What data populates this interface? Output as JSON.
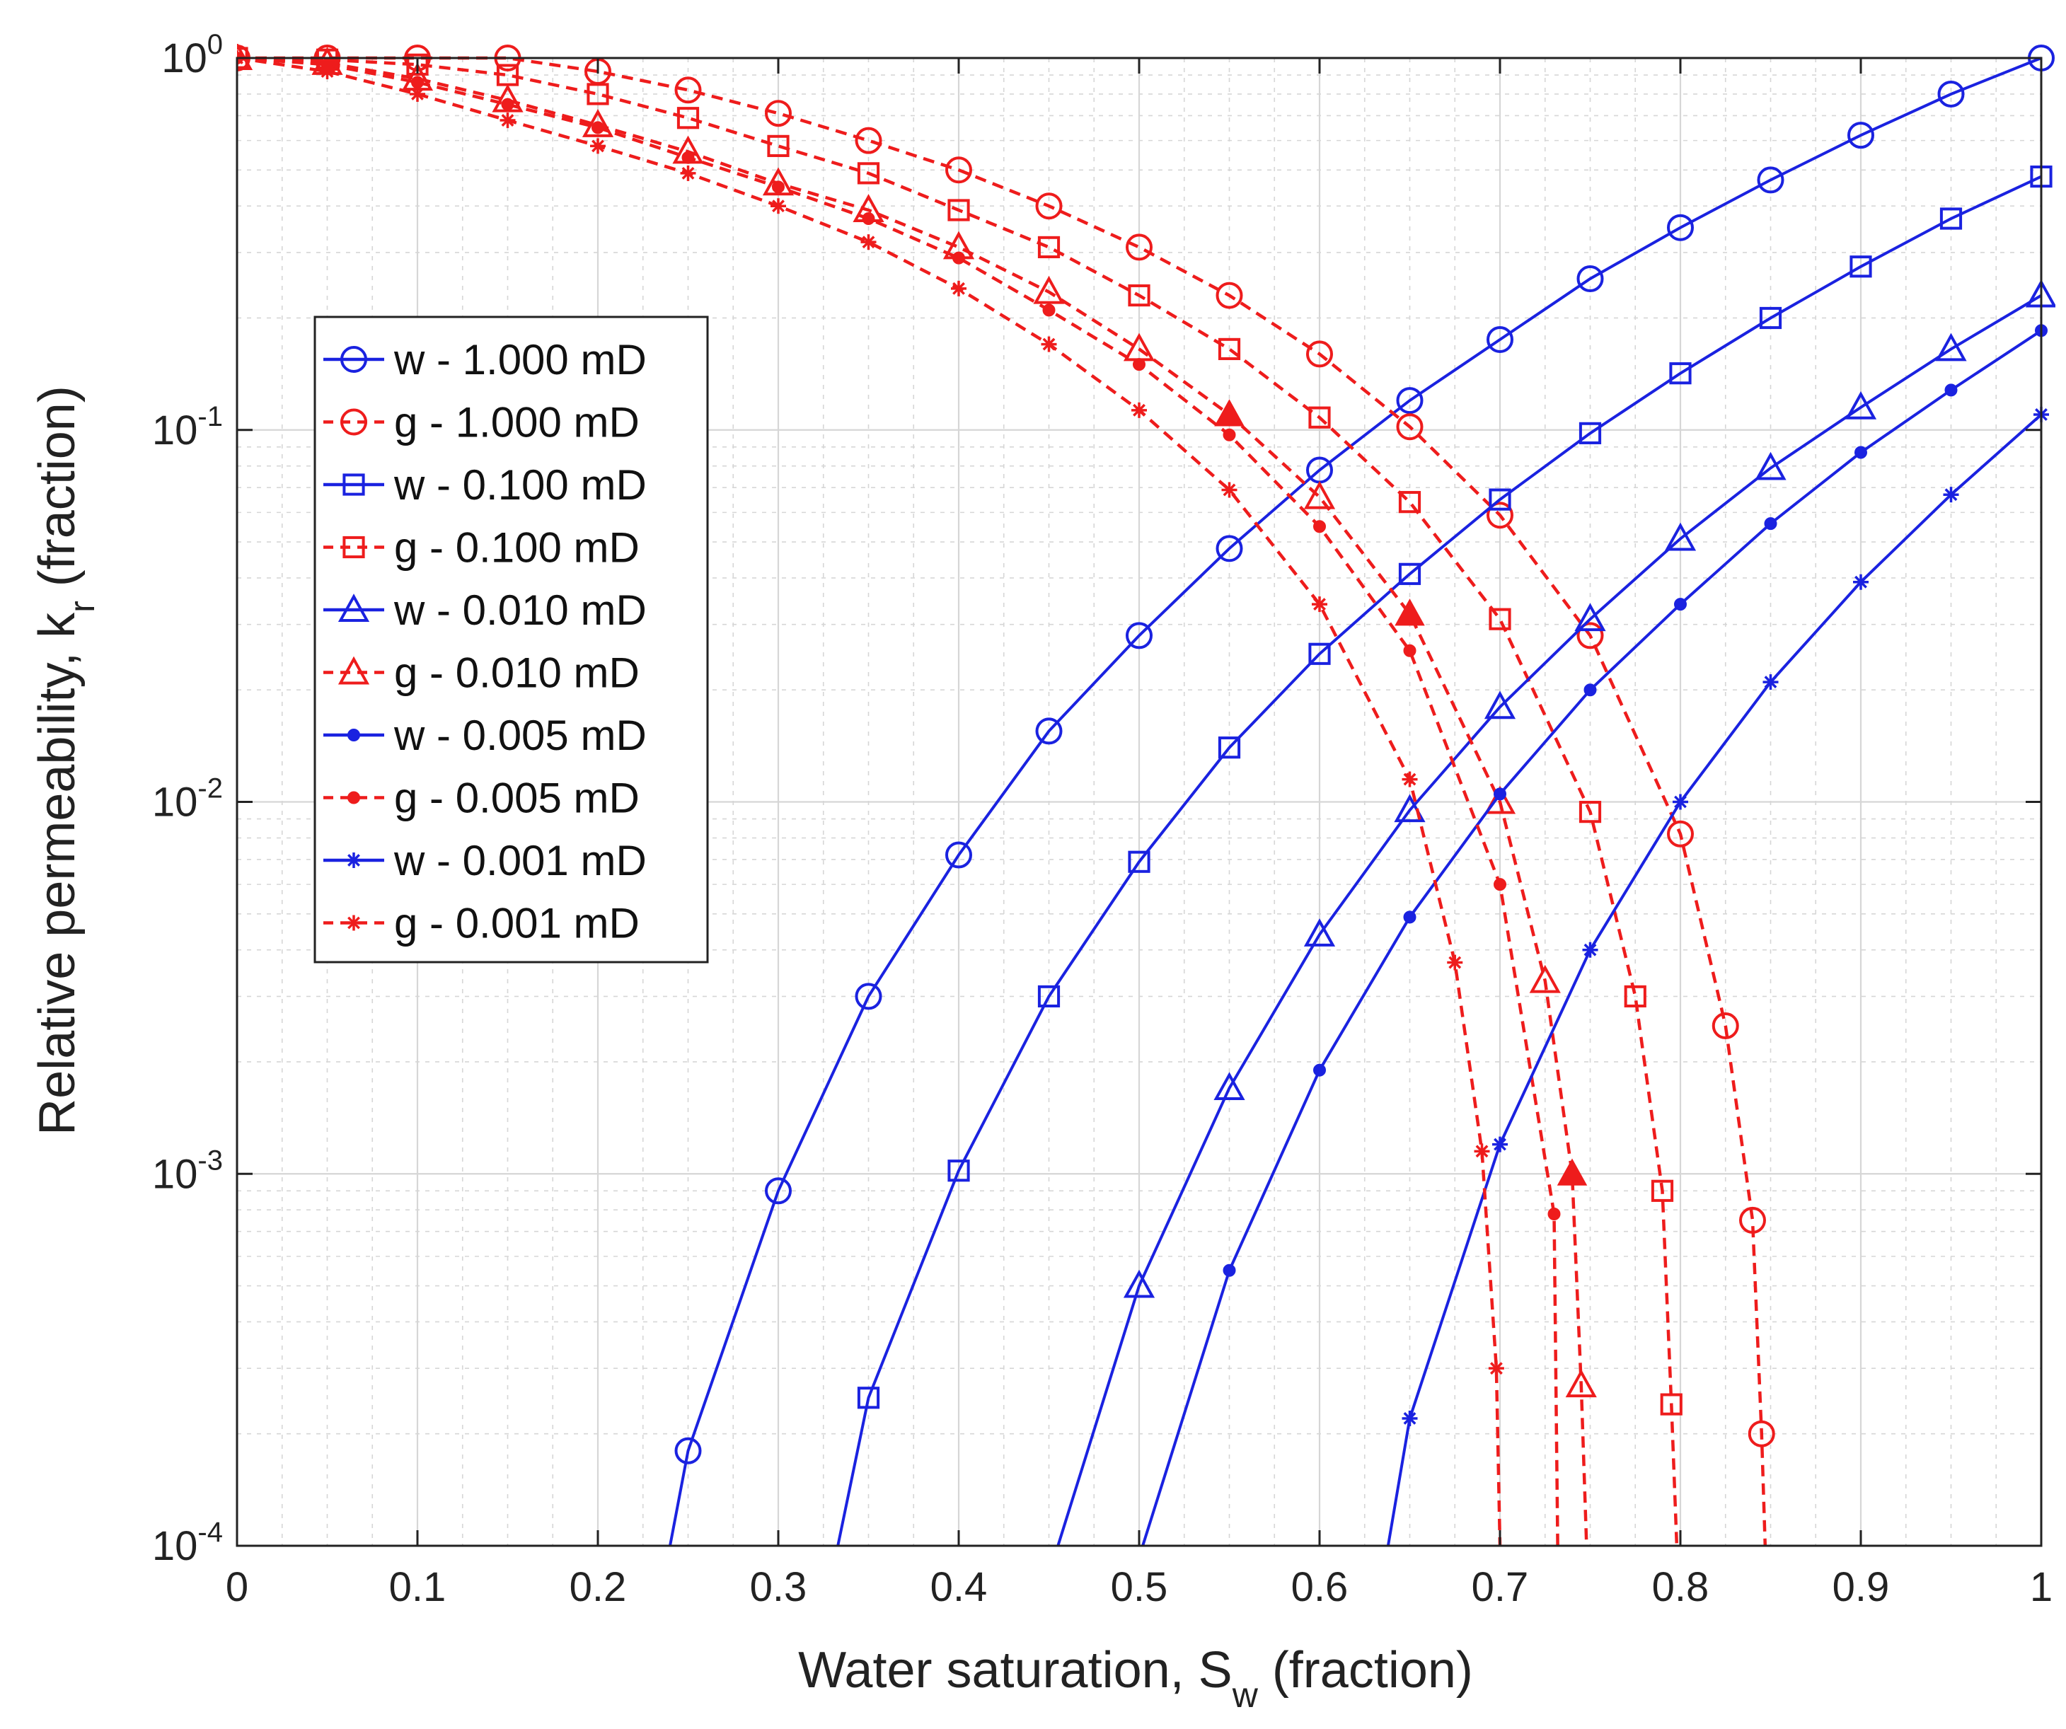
{
  "chart_data": {
    "type": "line",
    "yscale": "log",
    "xlabel": "Water saturation, S",
    "xlabel_sub": "w",
    "xlabel_suffix": " (fraction)",
    "ylabel": "Relative permeability, k",
    "ylabel_sub": "r",
    "ylabel_suffix": " (fraction)",
    "xlim": [
      0,
      1
    ],
    "ylim": [
      0.0001,
      1
    ],
    "x_ticks": [
      0,
      0.1,
      0.2,
      0.3,
      0.4,
      0.5,
      0.6,
      0.7,
      0.8,
      0.9,
      1
    ],
    "x_tick_labels": [
      "0",
      "0.1",
      "0.2",
      "0.3",
      "0.4",
      "0.5",
      "0.6",
      "0.7",
      "0.8",
      "0.9",
      "1"
    ],
    "y_ticks": [
      {
        "base": "10",
        "exp": "0",
        "value": 1
      },
      {
        "base": "10",
        "exp": "-1",
        "value": 0.1
      },
      {
        "base": "10",
        "exp": "-2",
        "value": 0.01
      },
      {
        "base": "10",
        "exp": "-3",
        "value": 0.001
      },
      {
        "base": "10",
        "exp": "-4",
        "value": 0.0001
      }
    ],
    "grid": true,
    "legend_position": "left",
    "colors": {
      "water": "#1a22e0",
      "gas": "#ee1c1c",
      "grid": "#d6d6d6",
      "axis": "#222222"
    },
    "series": [
      {
        "name": "w - 1.000 mD",
        "phase": "water",
        "marker": "circle",
        "x": [
          0.24,
          0.25,
          0.3,
          0.35,
          0.4,
          0.45,
          0.5,
          0.55,
          0.6,
          0.65,
          0.7,
          0.75,
          0.8,
          0.85,
          0.9,
          0.95,
          1.0
        ],
        "y": [
          0.0001,
          0.00018,
          0.0009,
          0.003,
          0.0072,
          0.0155,
          0.028,
          0.048,
          0.078,
          0.12,
          0.175,
          0.255,
          0.35,
          0.47,
          0.62,
          0.8,
          1.0
        ],
        "marker_from": 1
      },
      {
        "name": "g - 1.000 mD",
        "phase": "gas",
        "marker": "circle",
        "x": [
          0,
          0.05,
          0.1,
          0.15,
          0.2,
          0.25,
          0.3,
          0.35,
          0.4,
          0.45,
          0.5,
          0.55,
          0.6,
          0.65,
          0.7,
          0.75,
          0.8,
          0.825,
          0.84,
          0.845,
          0.847
        ],
        "y": [
          1.0,
          1.0,
          1.0,
          1.0,
          0.92,
          0.82,
          0.71,
          0.6,
          0.5,
          0.4,
          0.31,
          0.23,
          0.16,
          0.102,
          0.059,
          0.028,
          0.0082,
          0.0025,
          0.00075,
          0.0002,
          0.0001
        ],
        "marker_count": 20
      },
      {
        "name": "w - 0.100 mD",
        "phase": "water",
        "marker": "square",
        "x": [
          0.333,
          0.35,
          0.4,
          0.45,
          0.5,
          0.55,
          0.6,
          0.65,
          0.7,
          0.75,
          0.8,
          0.85,
          0.9,
          0.95,
          1.0
        ],
        "y": [
          0.0001,
          0.00025,
          0.00102,
          0.003,
          0.0069,
          0.014,
          0.025,
          0.041,
          0.065,
          0.098,
          0.142,
          0.2,
          0.275,
          0.37,
          0.48
        ],
        "marker_from": 1
      },
      {
        "name": "g - 0.100 mD",
        "phase": "gas",
        "marker": "square",
        "x": [
          0,
          0.05,
          0.1,
          0.15,
          0.2,
          0.25,
          0.3,
          0.35,
          0.4,
          0.45,
          0.5,
          0.55,
          0.6,
          0.65,
          0.7,
          0.75,
          0.775,
          0.79,
          0.795,
          0.798
        ],
        "y": [
          1.0,
          0.99,
          0.96,
          0.9,
          0.8,
          0.69,
          0.58,
          0.49,
          0.39,
          0.31,
          0.23,
          0.165,
          0.108,
          0.064,
          0.031,
          0.0094,
          0.003,
          0.0009,
          0.00024,
          0.0001
        ],
        "marker_count": 19
      },
      {
        "name": "w - 0.010 mD",
        "phase": "water",
        "marker": "triangle",
        "x": [
          0.455,
          0.5,
          0.55,
          0.6,
          0.65,
          0.7,
          0.75,
          0.8,
          0.85,
          0.9,
          0.95,
          1.0
        ],
        "y": [
          0.0001,
          0.0005,
          0.0017,
          0.0044,
          0.0095,
          0.018,
          0.031,
          0.051,
          0.079,
          0.115,
          0.165,
          0.23
        ],
        "marker_from": 1
      },
      {
        "name": "g - 0.010 mD",
        "phase": "gas",
        "marker": "triangle",
        "x": [
          0,
          0.05,
          0.1,
          0.15,
          0.2,
          0.25,
          0.3,
          0.35,
          0.4,
          0.45,
          0.5,
          0.55,
          0.6,
          0.65,
          0.7,
          0.725,
          0.74,
          0.745,
          0.748
        ],
        "y": [
          1.0,
          0.97,
          0.88,
          0.77,
          0.66,
          0.56,
          0.46,
          0.39,
          0.31,
          0.235,
          0.165,
          0.11,
          0.066,
          0.032,
          0.01,
          0.0033,
          0.001,
          0.00027,
          0.0001
        ],
        "marker_count": 18
      },
      {
        "name": "w - 0.005 mD",
        "phase": "water",
        "marker": "dot",
        "x": [
          0.502,
          0.55,
          0.6,
          0.65,
          0.7,
          0.75,
          0.8,
          0.85,
          0.9,
          0.95,
          1.0
        ],
        "y": [
          0.0001,
          0.00055,
          0.0019,
          0.0049,
          0.0105,
          0.02,
          0.034,
          0.056,
          0.087,
          0.128,
          0.185
        ],
        "marker_from": 1
      },
      {
        "name": "g - 0.005 mD",
        "phase": "gas",
        "marker": "dot",
        "x": [
          0,
          0.05,
          0.1,
          0.15,
          0.2,
          0.25,
          0.3,
          0.35,
          0.4,
          0.45,
          0.5,
          0.55,
          0.6,
          0.65,
          0.7,
          0.73,
          0.732
        ],
        "y": [
          1.0,
          0.96,
          0.86,
          0.75,
          0.65,
          0.54,
          0.45,
          0.37,
          0.29,
          0.21,
          0.15,
          0.097,
          0.055,
          0.0255,
          0.006,
          0.00078,
          0.0001
        ],
        "marker_count": 16
      },
      {
        "name": "w - 0.001 mD",
        "phase": "water",
        "marker": "star",
        "x": [
          0.638,
          0.65,
          0.7,
          0.75,
          0.8,
          0.85,
          0.9,
          0.95,
          1.0
        ],
        "y": [
          0.0001,
          0.00022,
          0.0012,
          0.004,
          0.01,
          0.021,
          0.039,
          0.067,
          0.11
        ],
        "marker_from": 1
      },
      {
        "name": "g - 0.001 mD",
        "phase": "gas",
        "marker": "star",
        "x": [
          0,
          0.05,
          0.1,
          0.15,
          0.2,
          0.25,
          0.3,
          0.35,
          0.4,
          0.45,
          0.5,
          0.55,
          0.6,
          0.65,
          0.675,
          0.69,
          0.698,
          0.7
        ],
        "y": [
          1.0,
          0.92,
          0.8,
          0.68,
          0.58,
          0.49,
          0.4,
          0.32,
          0.24,
          0.17,
          0.113,
          0.069,
          0.034,
          0.0115,
          0.0037,
          0.00115,
          0.0003,
          0.0001
        ],
        "marker_count": 17
      }
    ]
  }
}
